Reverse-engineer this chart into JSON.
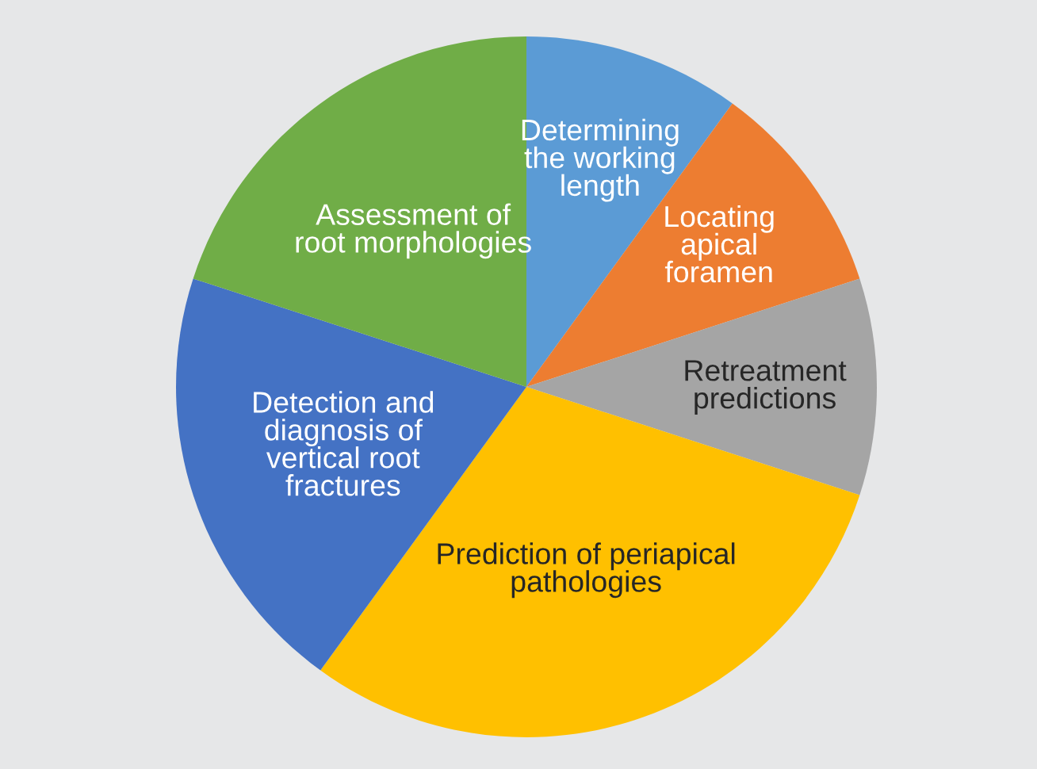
{
  "chart_data": {
    "type": "pie",
    "categories": [
      "Determining\nthe working\nlength",
      "Locating\napical\nforamen",
      "Retreatment\npredictions",
      "Prediction of periapical\npathologies",
      "Detection and\ndiagnosis of\nvertical root\nfractures",
      "Assessment of\nroot morphologies"
    ],
    "values": [
      10,
      10,
      10,
      30,
      20,
      20
    ],
    "colors": [
      "#5b9bd5",
      "#ed7d31",
      "#a5a5a5",
      "#ffc000",
      "#4472c4",
      "#70ad47"
    ]
  }
}
